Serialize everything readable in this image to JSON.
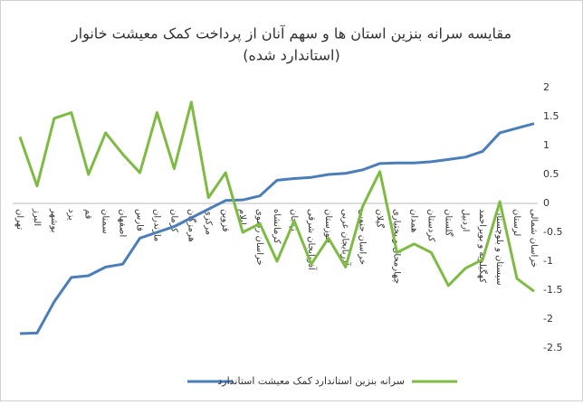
{
  "chart_data": {
    "type": "line",
    "title": "مقایسه سرانه بنزین استان ها و سهم آنان از پرداخت کمک معیشت خانوار",
    "subtitle": "(استاندارد شده)",
    "categories": [
      "تهران",
      "البرز",
      "بوشهر",
      "یزد",
      "قم",
      "سمنان",
      "اصفهان",
      "فارس",
      "مازندران",
      "کرمان",
      "هرمزگان",
      "مرکزی",
      "قزوین",
      "ایلام",
      "خراسان رضوی",
      "کرمانشاه",
      "زنجان",
      "آذربایجان شرقی",
      "خوزستان",
      "آذربایجان غربی",
      "خراسان جنوبی",
      "گیلان",
      "چهارمحال و بختیاری",
      "همدان",
      "کردستان",
      "گلستان",
      "اردبیل",
      "کهگیلویه و بویراحمد",
      "سیستان و بلوچستان",
      "لرستان",
      "خراسان شمالی"
    ],
    "series": [
      {
        "name": "کمک معیشت استاندارد",
        "color": "#4a7ebb",
        "values": [
          -2.25,
          -2.24,
          -1.7,
          -1.28,
          -1.25,
          -1.1,
          -1.05,
          -0.6,
          -0.5,
          -0.4,
          -0.25,
          -0.1,
          0.05,
          0.06,
          0.13,
          0.4,
          0.43,
          0.45,
          0.5,
          0.52,
          0.58,
          0.69,
          0.7,
          0.7,
          0.72,
          0.76,
          0.8,
          0.9,
          1.22,
          1.3,
          1.38
        ]
      },
      {
        "name": "سرانه بنزین استاندارد",
        "color": "#7dbb42",
        "values": [
          1.15,
          0.3,
          1.47,
          1.57,
          0.5,
          1.22,
          0.85,
          0.53,
          1.57,
          0.6,
          1.75,
          0.1,
          0.53,
          -0.5,
          -0.35,
          -1.0,
          -0.3,
          -1.05,
          -0.6,
          -1.1,
          -0.05,
          0.55,
          -0.85,
          -0.7,
          -0.85,
          -1.42,
          -1.12,
          -0.97,
          0.03,
          -1.3,
          -1.52
        ]
      }
    ],
    "ylim": [
      -2.5,
      2
    ],
    "yticks": [
      -2.5,
      -2,
      -1.5,
      -1,
      -0.5,
      0,
      0.5,
      1,
      1.5,
      2
    ],
    "grid": false
  }
}
